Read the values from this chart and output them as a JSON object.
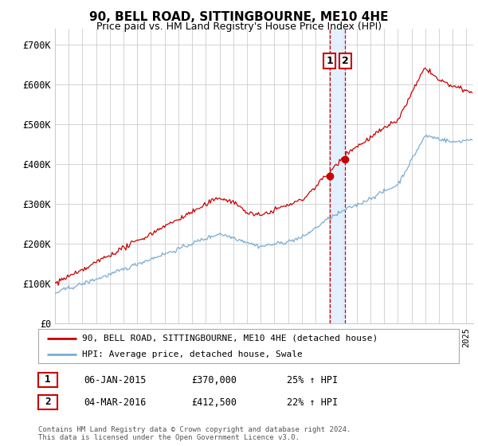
{
  "title": "90, BELL ROAD, SITTINGBOURNE, ME10 4HE",
  "subtitle": "Price paid vs. HM Land Registry's House Price Index (HPI)",
  "ylabel_ticks": [
    "£0",
    "£100K",
    "£200K",
    "£300K",
    "£400K",
    "£500K",
    "£600K",
    "£700K"
  ],
  "ytick_values": [
    0,
    100000,
    200000,
    300000,
    400000,
    500000,
    600000,
    700000
  ],
  "ylim": [
    0,
    740000
  ],
  "xlim_start": 1995.0,
  "xlim_end": 2025.5,
  "line1_color": "#cc0000",
  "line2_color": "#7aadd4",
  "vline_color": "#cc0000",
  "vline_shade_color": "#ddeeff",
  "legend_label1": "90, BELL ROAD, SITTINGBOURNE, ME10 4HE (detached house)",
  "legend_label2": "HPI: Average price, detached house, Swale",
  "annotation1_date": "06-JAN-2015",
  "annotation1_price": "£370,000",
  "annotation1_hpi": "25% ↑ HPI",
  "annotation2_date": "04-MAR-2016",
  "annotation2_price": "£412,500",
  "annotation2_hpi": "22% ↑ HPI",
  "footnote": "Contains HM Land Registry data © Crown copyright and database right 2024.\nThis data is licensed under the Open Government Licence v3.0.",
  "grid_color": "#cccccc",
  "background_color": "#ffffff",
  "vline1_x": 2015.02,
  "vline2_x": 2016.17,
  "sale1_y": 370000,
  "sale2_y": 412500
}
